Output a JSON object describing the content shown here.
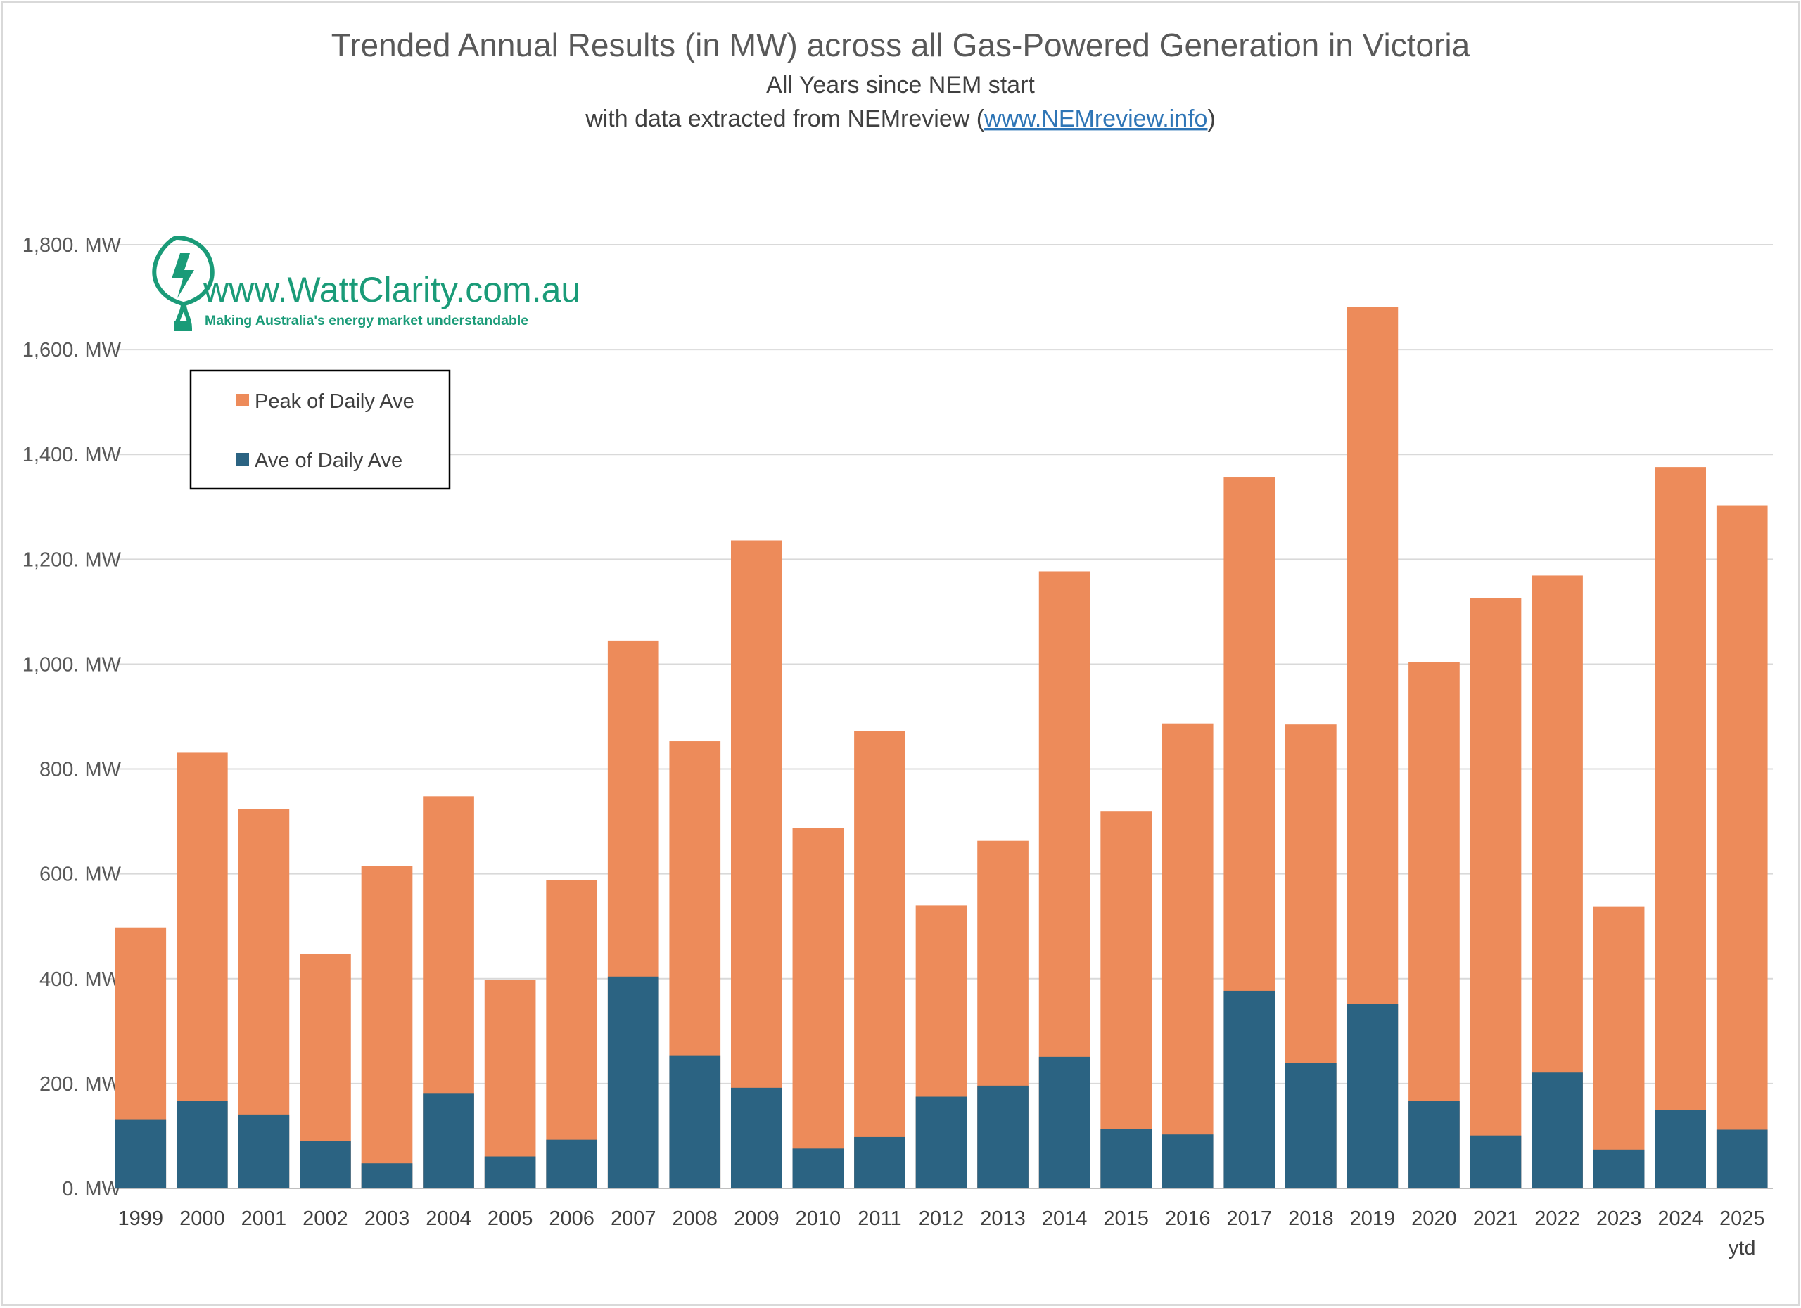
{
  "chart_data": {
    "type": "bar",
    "stacked": false,
    "overlap": true,
    "title": "Trended Annual Results (in MW) across all Gas-Powered Generation in Victoria",
    "subtitle_line1": "All Years since NEM start",
    "subtitle_prefix": "with data extracted from NEMreview (",
    "subtitle_link": "www.NEMreview.info",
    "subtitle_suffix": ")",
    "categories": [
      "1999",
      "2000",
      "2001",
      "2002",
      "2003",
      "2004",
      "2005",
      "2006",
      "2007",
      "2008",
      "2009",
      "2010",
      "2011",
      "2012",
      "2013",
      "2014",
      "2015",
      "2016",
      "2017",
      "2018",
      "2019",
      "2020",
      "2021",
      "2022",
      "2023",
      "2024",
      "2025"
    ],
    "category_sublabels": {
      "2025": "ytd"
    },
    "series": [
      {
        "name": "Peak of Daily Ave",
        "color": "#ed8b5a",
        "values": [
          498,
          831,
          724,
          448,
          615,
          748,
          398,
          588,
          1045,
          853,
          1236,
          688,
          873,
          540,
          663,
          1177,
          720,
          887,
          1356,
          885,
          1681,
          1004,
          1126,
          1169,
          537,
          1376,
          1303
        ]
      },
      {
        "name": "Ave of Daily Ave",
        "color": "#2b6382",
        "values": [
          132,
          167,
          141,
          91,
          48,
          182,
          61,
          93,
          404,
          254,
          192,
          76,
          98,
          175,
          196,
          251,
          114,
          103,
          377,
          239,
          352,
          167,
          101,
          221,
          74,
          150,
          112
        ]
      }
    ],
    "ylim": [
      0,
      1800
    ],
    "yticks": [
      0,
      200,
      400,
      600,
      800,
      1000,
      1200,
      1400,
      1600,
      1800
    ],
    "ytick_labels": [
      "0. MW",
      "200. MW",
      "400. MW",
      "600. MW",
      "800. MW",
      "1,000. MW",
      "1,200. MW",
      "1,400. MW",
      "1,600. MW",
      "1,800. MW"
    ],
    "grid": true,
    "legend_position": "top-left"
  },
  "watermark": {
    "url": "www.WattClarity.com.au",
    "tagline": "Making Australia's energy market understandable",
    "color": "#1a9b78",
    "icon": "lightbulb-bolt-icon"
  }
}
